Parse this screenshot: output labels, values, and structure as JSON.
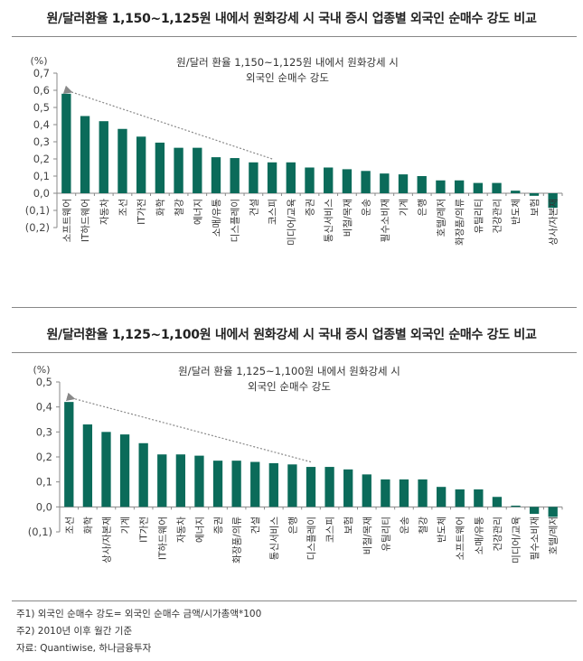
{
  "chart_data": [
    {
      "type": "bar",
      "title": "원/달러환율 1,150~1,125원 내에서 원화강세 시 국내 증시 업종별 외국인 순매수 강도 비교",
      "annotation": [
        "원/달러 환율 1,150~1,125원 내에서 원화강세 시",
        "외국인 순매수 강도"
      ],
      "ylabel": "(%)",
      "ylim": [
        -0.2,
        0.7
      ],
      "yticks": [
        "0.7",
        "0.6",
        "0.5",
        "0.4",
        "0.3",
        "0.2",
        "0.1",
        "0.0",
        "(0.1)",
        "(0.2)"
      ],
      "ytick_values": [
        0.7,
        0.6,
        0.5,
        0.4,
        0.3,
        0.2,
        0.1,
        0.0,
        -0.1,
        -0.2
      ],
      "color": "#0b6b5a",
      "categories": [
        "소프트웨어",
        "IT하드웨어",
        "자동차",
        "조선",
        "IT가전",
        "화학",
        "철강",
        "에너지",
        "소매/유통",
        "디스플레이",
        "건설",
        "코스피",
        "미디어/교육",
        "증권",
        "통신서비스",
        "비철/목재",
        "운송",
        "필수소비재",
        "기계",
        "은행",
        "호텔/레저",
        "화장품/의류",
        "유틸리티",
        "건강관리",
        "반도체",
        "보험",
        "상사/자본재"
      ],
      "values": [
        0.58,
        0.45,
        0.42,
        0.375,
        0.33,
        0.295,
        0.265,
        0.265,
        0.21,
        0.205,
        0.18,
        0.18,
        0.18,
        0.15,
        0.15,
        0.14,
        0.13,
        0.115,
        0.11,
        0.1,
        0.075,
        0.075,
        0.06,
        0.06,
        0.015,
        -0.015,
        -0.085
      ],
      "trend_arrow": {
        "from_index": 11,
        "from_value": 0.2,
        "to_index": 0,
        "to_value": 0.6
      }
    },
    {
      "type": "bar",
      "title": "원/달러환율 1,125~1,100원 내에서 원화강세 시 국내 증시 업종별 외국인 순매수 강도 비교",
      "annotation": [
        "원/달러 환율 1,125~1,100원 내에서 원화강세 시",
        "외국인 순매수 강도"
      ],
      "ylabel": "(%)",
      "ylim": [
        -0.1,
        0.5
      ],
      "yticks": [
        "0.5",
        "0.4",
        "0.3",
        "0.2",
        "0.1",
        "0.0",
        "(0.1)"
      ],
      "ytick_values": [
        0.5,
        0.4,
        0.3,
        0.2,
        0.1,
        0.0,
        -0.1
      ],
      "color": "#0b6b5a",
      "categories": [
        "조선",
        "화학",
        "상사/자본재",
        "기계",
        "IT가전",
        "IT하드웨어",
        "자동차",
        "에너지",
        "증권",
        "화장품/의류",
        "건설",
        "통신서비스",
        "은행",
        "디스플레이",
        "코스피",
        "보험",
        "비철/목재",
        "유틸리티",
        "운송",
        "철강",
        "반도체",
        "소프트웨어",
        "소매/유통",
        "건강관리",
        "미디어/교육",
        "필수소비재",
        "호텔/레저"
      ],
      "values": [
        0.42,
        0.33,
        0.3,
        0.29,
        0.255,
        0.21,
        0.21,
        0.205,
        0.185,
        0.185,
        0.18,
        0.175,
        0.17,
        0.16,
        0.16,
        0.15,
        0.13,
        0.11,
        0.11,
        0.11,
        0.08,
        0.07,
        0.07,
        0.04,
        0.005,
        -0.028,
        -0.04
      ],
      "trend_arrow": {
        "from_index": 13,
        "from_value": 0.18,
        "to_index": 0,
        "to_value": 0.44
      }
    }
  ],
  "notes": [
    "주1) 외국인 순매수 강도= 외국인 순매수 금액/시가총액*100",
    "주2) 2010년 이후 월간 기준",
    "자료: Quantiwise, 하나금융투자"
  ]
}
